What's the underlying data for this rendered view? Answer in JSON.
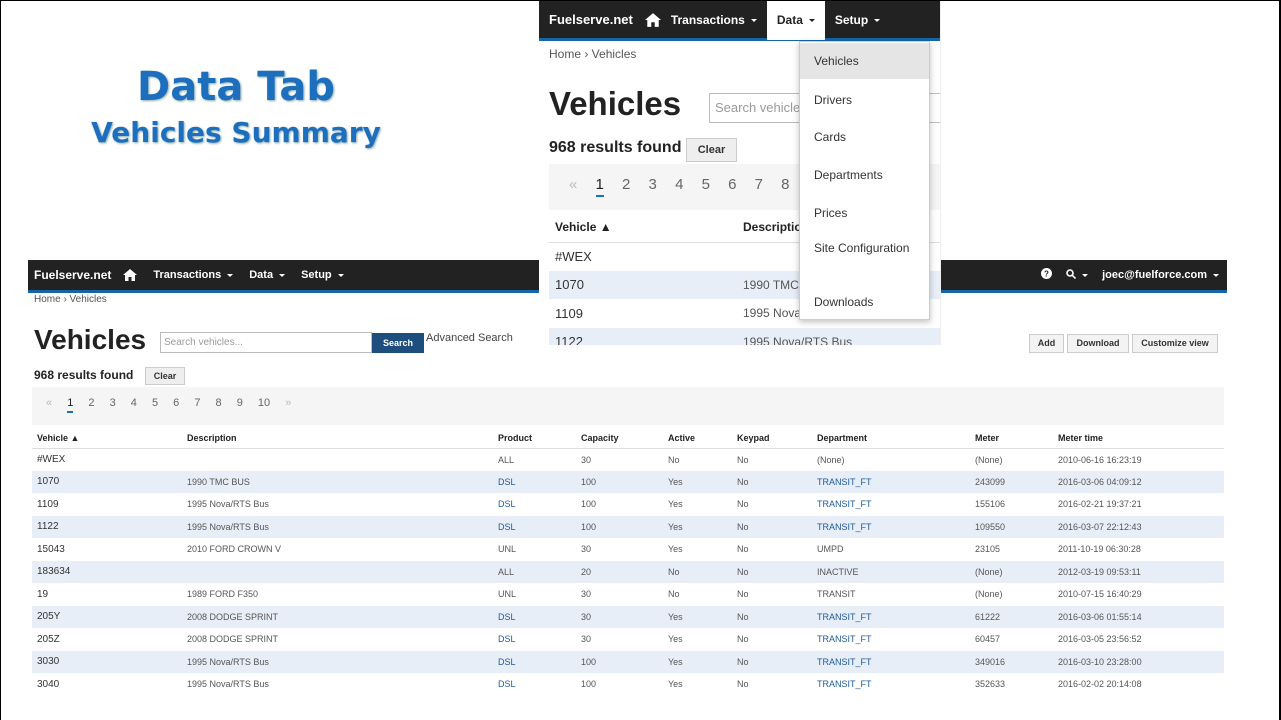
{
  "slide": {
    "title": "Data Tab",
    "subtitle": "Vehicles Summary"
  },
  "nav": {
    "brand": "Fuelserve.net",
    "transactions": "Transactions",
    "data": "Data",
    "setup": "Setup",
    "user": "joec@fuelforce.com"
  },
  "breadcrumb": "Home › Vehicles",
  "page_title": "Vehicles",
  "search": {
    "placeholder": "Search vehicles...",
    "button": "Search",
    "advanced": "Advanced Search"
  },
  "toolbar": {
    "add": "Add",
    "download": "Download",
    "customize": "Customize view"
  },
  "results": {
    "count": "968 results found",
    "clear": "Clear"
  },
  "pager": {
    "prev": "«",
    "next": "»",
    "pages": [
      "1",
      "2",
      "3",
      "4",
      "5",
      "6",
      "7",
      "8",
      "9",
      "10"
    ],
    "current": "1"
  },
  "dropdown": {
    "items": [
      "Vehicles",
      "Drivers",
      "Cards",
      "Departments",
      "Prices",
      "Site Configuration",
      "Downloads"
    ],
    "selected": "Vehicles"
  },
  "table": {
    "columns": [
      "Vehicle ▲",
      "Description",
      "Product",
      "Capacity",
      "Active",
      "Keypad",
      "Department",
      "Meter",
      "Meter time"
    ],
    "rows": [
      [
        "#WEX",
        "",
        "ALL",
        "30",
        "No",
        "No",
        "(None)",
        "(None)",
        "2010-06-16 16:23:19"
      ],
      [
        "1070",
        "1990 TMC BUS",
        "DSL",
        "100",
        "Yes",
        "No",
        "TRANSIT_FT",
        "243099",
        "2016-03-06 04:09:12"
      ],
      [
        "1109",
        "1995 Nova/RTS Bus",
        "DSL",
        "100",
        "Yes",
        "No",
        "TRANSIT_FT",
        "155106",
        "2016-02-21 19:37:21"
      ],
      [
        "1122",
        "1995 Nova/RTS Bus",
        "DSL",
        "100",
        "Yes",
        "No",
        "TRANSIT_FT",
        "109550",
        "2016-03-07 22:12:43"
      ],
      [
        "15043",
        "2010 FORD CROWN V",
        "UNL",
        "30",
        "Yes",
        "No",
        "UMPD",
        "23105",
        "2011-10-19 06:30:28"
      ],
      [
        "183634",
        "",
        "ALL",
        "20",
        "No",
        "No",
        "INACTIVE",
        "(None)",
        "2012-03-19 09:53:11"
      ],
      [
        "19",
        "1989 FORD F350",
        "UNL",
        "30",
        "No",
        "No",
        "TRANSIT",
        "(None)",
        "2010-07-15 16:40:29"
      ],
      [
        "205Y",
        "2008 DODGE SPRINT",
        "DSL",
        "30",
        "Yes",
        "No",
        "TRANSIT_FT",
        "61222",
        "2016-03-06 01:55:14"
      ],
      [
        "205Z",
        "2008 DODGE SPRINT",
        "DSL",
        "30",
        "Yes",
        "No",
        "TRANSIT_FT",
        "60457",
        "2016-03-05 23:56:52"
      ],
      [
        "3030",
        "1995 Nova/RTS Bus",
        "DSL",
        "100",
        "Yes",
        "No",
        "TRANSIT_FT",
        "349016",
        "2016-03-10 23:28:00"
      ],
      [
        "3040",
        "1995 Nova/RTS Bus",
        "DSL",
        "100",
        "Yes",
        "No",
        "TRANSIT_FT",
        "352633",
        "2016-02-02 20:14:08"
      ]
    ]
  },
  "small_table": {
    "columns": [
      "Vehicle ▲",
      "Descriptio"
    ],
    "rows": [
      [
        "#WEX",
        ""
      ],
      [
        "1070",
        "1990 TMC"
      ],
      [
        "1109",
        "1995 Nova/"
      ],
      [
        "1122",
        "1995 Nova/RTS Bus"
      ]
    ]
  },
  "small_pager_pages": [
    "1",
    "2",
    "3",
    "4",
    "5",
    "6",
    "7",
    "8"
  ],
  "small_search_placeholder": "Search vehicles",
  "colors": {
    "nav_bg": "#222222",
    "nav_accent": "#1565a8",
    "title_blue": "#1d6fbe",
    "row_alt": "#e8eef7",
    "search_button": "#1d4e7e"
  },
  "icons": {
    "home": "home-icon",
    "help": "question-circle-icon",
    "search": "search-icon",
    "sort": "sort-ascending-icon"
  }
}
